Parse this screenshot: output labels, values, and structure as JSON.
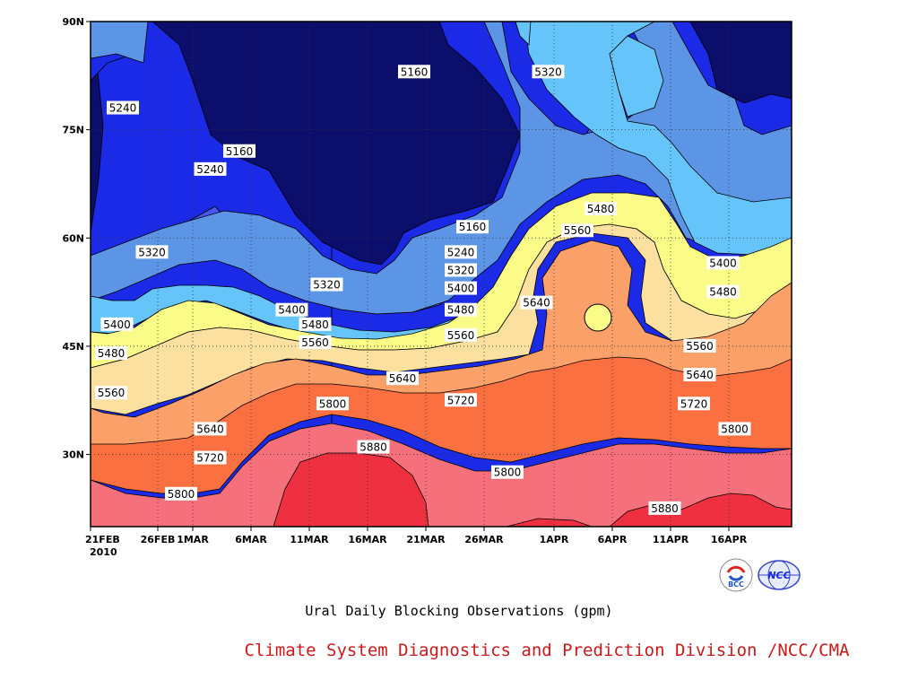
{
  "chart_data": {
    "type": "heatmap",
    "subtype": "filled-contour",
    "caption": "Ural Daily Blocking Observations (gpm)",
    "credit": "Climate System Diagnostics and Prediction Division /NCC/CMA",
    "x_ticks": [
      "21FEB",
      "26FEB",
      "1MAR",
      "6MAR",
      "11MAR",
      "16MAR",
      "21MAR",
      "26MAR",
      "1APR",
      "6APR",
      "11APR",
      "16APR"
    ],
    "x_year_label": "2010",
    "y_ticks": [
      "90N",
      "75N",
      "60N",
      "45N",
      "30N"
    ],
    "y_range_deg": [
      20,
      90
    ],
    "grid": "dotted",
    "contour_levels": [
      5160,
      5240,
      5320,
      5400,
      5480,
      5560,
      5640,
      5720,
      5800,
      5880
    ],
    "band_colors": [
      "#0b0f6b",
      "#1a2ae6",
      "#4a55ee",
      "#5c94e6",
      "#65c5fb",
      "#fbfb88",
      "#fbe0a0",
      "#fba068",
      "#fb7040",
      "#f5707a",
      "#ef3040"
    ],
    "contour_labels": [
      {
        "text": "5240",
        "day": 2,
        "lat": 78
      },
      {
        "text": "5160",
        "day": 12,
        "lat": 72
      },
      {
        "text": "5240",
        "day": 9.5,
        "lat": 69.5
      },
      {
        "text": "5160",
        "day": 27,
        "lat": 83
      },
      {
        "text": "5320",
        "day": 38.5,
        "lat": 83
      },
      {
        "text": "5320",
        "day": 4.5,
        "lat": 58
      },
      {
        "text": "5480",
        "day": 43,
        "lat": 64
      },
      {
        "text": "5560",
        "day": 41,
        "lat": 61
      },
      {
        "text": "5160",
        "day": 32,
        "lat": 61.5
      },
      {
        "text": "5240",
        "day": 31,
        "lat": 58
      },
      {
        "text": "5320",
        "day": 31,
        "lat": 55.5
      },
      {
        "text": "5400",
        "day": 31,
        "lat": 53
      },
      {
        "text": "5480",
        "day": 31,
        "lat": 50
      },
      {
        "text": "5560",
        "day": 31,
        "lat": 46.5
      },
      {
        "text": "5320",
        "day": 19.5,
        "lat": 53.5
      },
      {
        "text": "5400",
        "day": 16.5,
        "lat": 50
      },
      {
        "text": "5480",
        "day": 18.5,
        "lat": 48
      },
      {
        "text": "5560",
        "day": 18.5,
        "lat": 45.5
      },
      {
        "text": "5640",
        "day": 37.5,
        "lat": 51
      },
      {
        "text": "5400",
        "day": 1.5,
        "lat": 48
      },
      {
        "text": "5480",
        "day": 1,
        "lat": 44
      },
      {
        "text": "5560",
        "day": 1,
        "lat": 38.5
      },
      {
        "text": "5640",
        "day": 9.5,
        "lat": 33.5
      },
      {
        "text": "5720",
        "day": 9.5,
        "lat": 29.5
      },
      {
        "text": "5800",
        "day": 7,
        "lat": 24.5
      },
      {
        "text": "5800",
        "day": 20,
        "lat": 37
      },
      {
        "text": "5880",
        "day": 23.5,
        "lat": 31
      },
      {
        "text": "5640",
        "day": 26,
        "lat": 40.5
      },
      {
        "text": "5720",
        "day": 31,
        "lat": 37.5
      },
      {
        "text": "5800",
        "day": 35,
        "lat": 27.5
      },
      {
        "text": "5880",
        "day": 48.5,
        "lat": 22.5
      },
      {
        "text": "5400",
        "day": 53.5,
        "lat": 56.5
      },
      {
        "text": "5480",
        "day": 53.5,
        "lat": 52.5
      },
      {
        "text": "5560",
        "day": 51.5,
        "lat": 45
      },
      {
        "text": "5640",
        "day": 51.5,
        "lat": 41
      },
      {
        "text": "5720",
        "day": 51,
        "lat": 37
      },
      {
        "text": "5800",
        "day": 54.5,
        "lat": 33.5
      }
    ]
  },
  "logos": {
    "bcc_text": "BCC",
    "ncc_text": "NCC"
  }
}
